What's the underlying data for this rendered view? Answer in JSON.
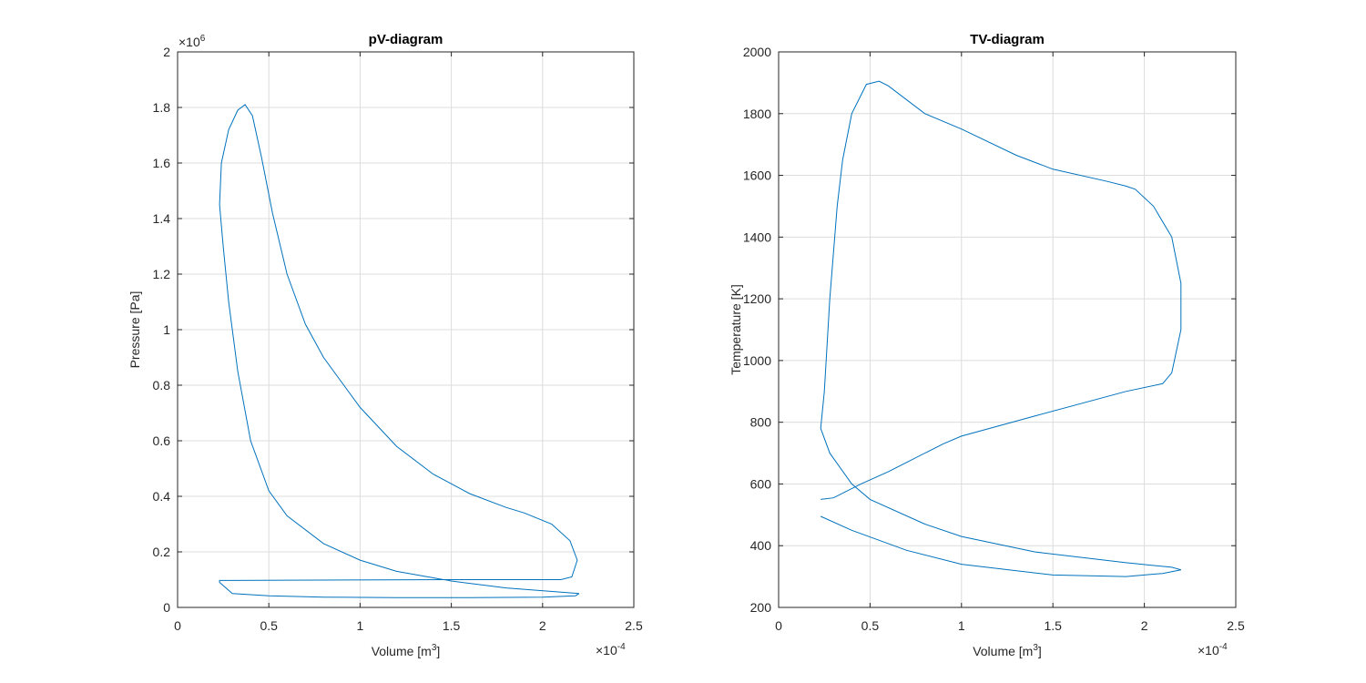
{
  "chart_data": [
    {
      "type": "line",
      "title": "pV-diagram",
      "xlabel": {
        "text": "Volume [m",
        "sup": "3",
        "tail": "]"
      },
      "ylabel": "Pressure [Pa]",
      "x_multiplier": {
        "base": "×10",
        "exponent": "-4"
      },
      "y_multiplier": {
        "base": "×10",
        "exponent": "6"
      },
      "xlim": [
        0,
        2.5
      ],
      "ylim": [
        0,
        2
      ],
      "xticks": [
        0,
        0.5,
        1,
        1.5,
        2,
        2.5
      ],
      "yticks": [
        0,
        0.2,
        0.4,
        0.6,
        0.8,
        1,
        1.2,
        1.4,
        1.6,
        1.8,
        2
      ],
      "grid": true,
      "series": [
        {
          "color": "#0072bd",
          "x": [
            2.2,
            1.8,
            1.5,
            1.2,
            1.0,
            0.8,
            0.6,
            0.5,
            0.4,
            0.33,
            0.28,
            0.25,
            0.23,
            0.24,
            0.28,
            0.33,
            0.37,
            0.41,
            0.46,
            0.52,
            0.6,
            0.7,
            0.8,
            1.0,
            1.2,
            1.4,
            1.6,
            1.8,
            1.9,
            2.05,
            2.15,
            2.19,
            2.16,
            2.1,
            1.5,
            0.6,
            0.23,
            0.23,
            0.3,
            0.5,
            0.8,
            1.2,
            1.6,
            2.0,
            2.18,
            2.2
          ],
          "values": [
            0.05,
            0.07,
            0.095,
            0.13,
            0.17,
            0.23,
            0.33,
            0.42,
            0.6,
            0.85,
            1.1,
            1.3,
            1.45,
            1.6,
            1.72,
            1.79,
            1.81,
            1.77,
            1.62,
            1.42,
            1.2,
            1.02,
            0.9,
            0.72,
            0.58,
            0.48,
            0.41,
            0.36,
            0.34,
            0.3,
            0.24,
            0.17,
            0.11,
            0.1,
            0.1,
            0.098,
            0.097,
            0.09,
            0.05,
            0.042,
            0.037,
            0.035,
            0.035,
            0.037,
            0.042,
            0.05
          ]
        }
      ]
    },
    {
      "type": "line",
      "title": "TV-diagram",
      "xlabel": {
        "text": "Volume [m",
        "sup": "3",
        "tail": "]"
      },
      "ylabel": "Temperature [K]",
      "x_multiplier": {
        "base": "×10",
        "exponent": "-4"
      },
      "xlim": [
        0,
        2.5
      ],
      "ylim": [
        200,
        2000
      ],
      "xticks": [
        0,
        0.5,
        1,
        1.5,
        2,
        2.5
      ],
      "yticks": [
        200,
        400,
        600,
        800,
        1000,
        1200,
        1400,
        1600,
        1800,
        2000
      ],
      "grid": true,
      "series": [
        {
          "color": "#0072bd",
          "x": [
            0.23,
            0.3,
            0.45,
            0.6,
            0.9,
            1.0,
            1.4,
            1.9,
            2.1,
            2.15,
            2.2,
            2.2,
            2.15,
            2.05,
            1.95,
            1.9,
            1.8,
            1.5,
            1.3,
            1.0,
            0.8,
            0.6,
            0.55,
            0.48,
            0.4,
            0.35,
            0.32,
            0.28,
            0.25,
            0.23,
            0.28,
            0.4,
            0.5,
            0.8,
            1.0,
            1.4,
            1.9,
            2.15,
            2.2,
            2.1,
            1.9,
            1.5,
            1.0,
            0.7,
            0.4,
            0.23
          ],
          "values": [
            550,
            555,
            600,
            640,
            730,
            755,
            820,
            900,
            925,
            960,
            1100,
            1250,
            1400,
            1500,
            1555,
            1565,
            1580,
            1620,
            1665,
            1750,
            1800,
            1890,
            1905,
            1895,
            1800,
            1650,
            1500,
            1200,
            900,
            780,
            700,
            600,
            550,
            470,
            430,
            380,
            345,
            330,
            322,
            310,
            300,
            305,
            340,
            385,
            450,
            495
          ]
        }
      ]
    }
  ]
}
